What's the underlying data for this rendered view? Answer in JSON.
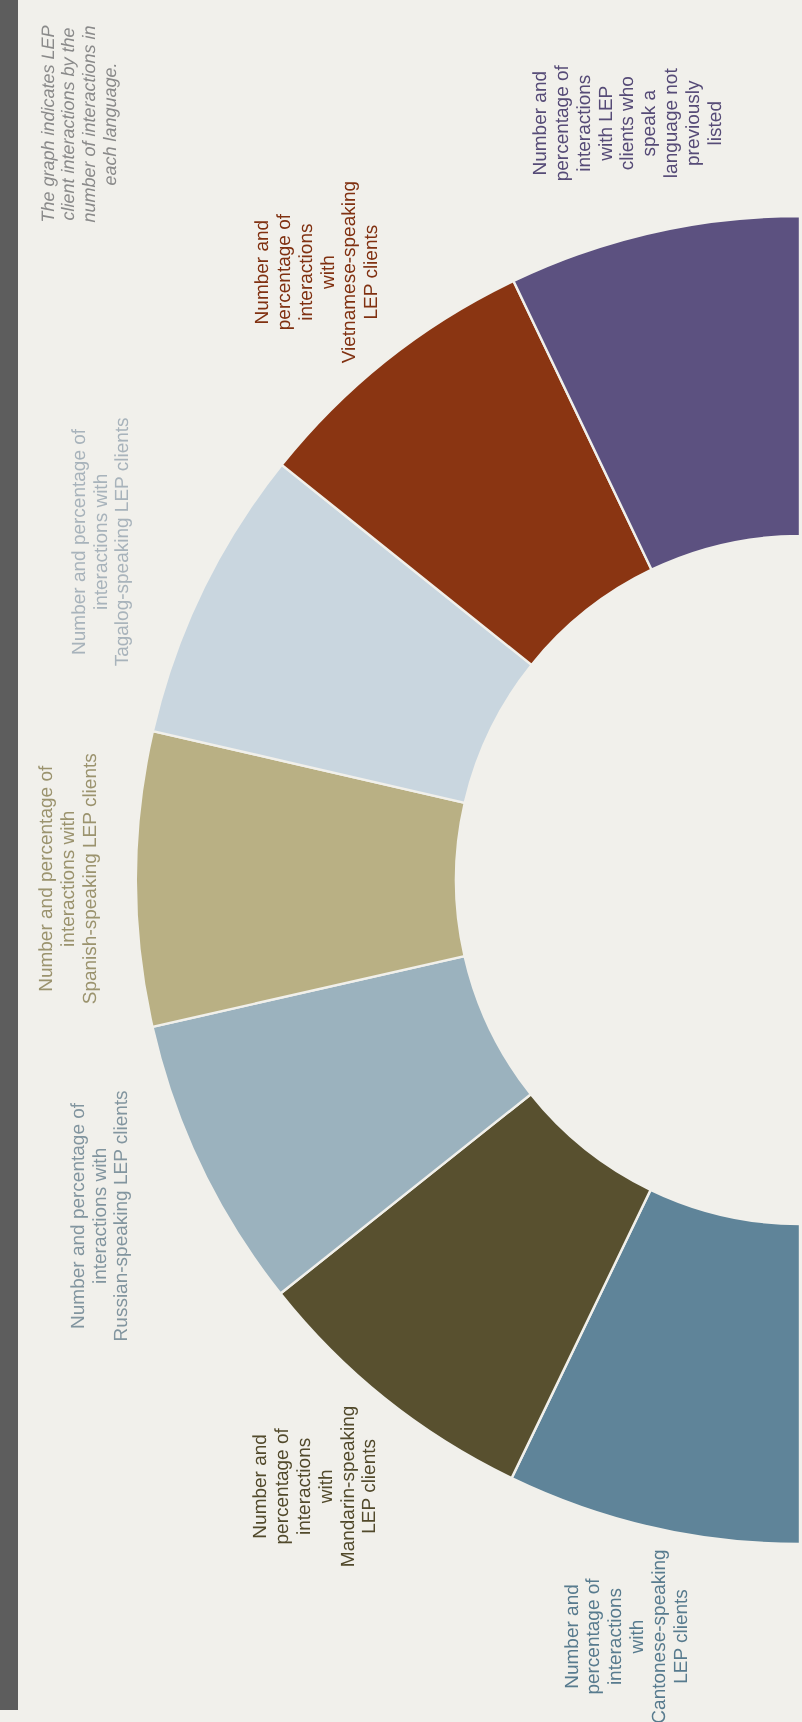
{
  "chart_data": {
    "type": "donut",
    "categories": [
      "Number and percentage of interactions with Cantonese-speaking LEP clients",
      "Number and percentage of interactions with Mandarin-speaking LEP clients",
      "Number and percentage of interactions with Russian-speaking LEP clients",
      "Number and percentage of interactions with Spanish-speaking LEP clients",
      "Number and percentage of interactions with Tagalog-speaking LEP clients",
      "Number and percentage of interactions with Vietnamese-speaking LEP clients",
      "Number and percentage of interactions with LEP clients who speak a language not previously listed"
    ],
    "values": [
      14.3,
      14.3,
      14.3,
      14.3,
      14.3,
      14.3,
      14.2
    ],
    "colors": [
      "#5f8499",
      "#58502f",
      "#9bb2be",
      "#b9b084",
      "#c9d6df",
      "#8a3512",
      "#5c5180"
    ],
    "annotations": [
      "The graph indicates LEP client interactions by the number of interactions in each language."
    ]
  }
}
